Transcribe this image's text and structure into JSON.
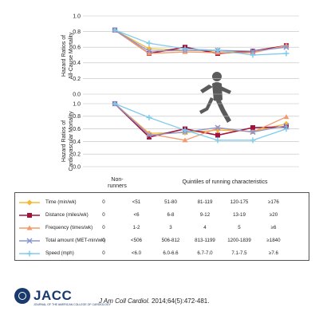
{
  "chart_data": [
    {
      "type": "line",
      "ylabel": "Hazard Ratios of All-Cause Mortality",
      "yticks": [
        "1.0",
        "0.8",
        "0.6",
        "0.4",
        "0.2",
        "0.0"
      ],
      "ylim": [
        0,
        1.0
      ],
      "x": [
        "Non-runners",
        "Q1",
        "Q2",
        "Q3",
        "Q4",
        "Q5"
      ],
      "series": [
        {
          "name": "Time (min/wk)",
          "values": [
            0.82,
            0.58,
            0.56,
            0.55,
            0.54,
            0.62
          ]
        },
        {
          "name": "Distance (miles/wk)",
          "values": [
            0.82,
            0.52,
            0.6,
            0.52,
            0.55,
            0.62
          ]
        },
        {
          "name": "Frequency (times/wk)",
          "values": [
            0.82,
            0.52,
            0.54,
            0.53,
            0.53,
            0.62
          ]
        },
        {
          "name": "Total amount (MET-min/wk)",
          "values": [
            0.82,
            0.55,
            0.56,
            0.56,
            0.55,
            0.6
          ]
        },
        {
          "name": "Speed (mph)",
          "values": [
            0.82,
            0.65,
            0.58,
            0.56,
            0.5,
            0.52
          ]
        }
      ]
    },
    {
      "type": "line",
      "ylabel": "Hazard Ratios of Cardiovascular Mortality",
      "yticks": [
        "1.0",
        "0.8",
        "0.6",
        "0.4",
        "0.2",
        "0.0"
      ],
      "ylim": [
        0,
        1.0
      ],
      "x": [
        "Non-runners",
        "Q1",
        "Q2",
        "Q3",
        "Q4",
        "Q5"
      ],
      "series": [
        {
          "name": "Time (min/wk)",
          "values": [
            1.0,
            0.53,
            0.54,
            0.58,
            0.56,
            0.68
          ]
        },
        {
          "name": "Distance (miles/wk)",
          "values": [
            1.0,
            0.47,
            0.6,
            0.5,
            0.62,
            0.63
          ]
        },
        {
          "name": "Frequency (times/wk)",
          "values": [
            1.0,
            0.52,
            0.42,
            0.61,
            0.55,
            0.79
          ]
        },
        {
          "name": "Total amount (MET-min/wk)",
          "values": [
            1.0,
            0.5,
            0.55,
            0.62,
            0.55,
            0.65
          ]
        },
        {
          "name": "Speed (mph)",
          "values": [
            1.0,
            0.78,
            0.58,
            0.42,
            0.42,
            0.6
          ]
        }
      ]
    }
  ],
  "axis": {
    "nonrunners_line1": "Non-",
    "nonrunners_line2": "runners",
    "xlabel": "Quintiles of running characteristics"
  },
  "ylabels": {
    "top_line1": "Hazard Ratios of",
    "top_line2": "All-Cause Mortality",
    "bottom_line1": "Hazard Ratios of",
    "bottom_line2": "Cardiovascular Mortality"
  },
  "legend": [
    {
      "label": "Time (min/wk)",
      "values": [
        "0",
        "<51",
        "51-80",
        "81-119",
        "120-175",
        "≥176"
      ],
      "color": "#f5b82e",
      "marker": "diamond"
    },
    {
      "label": "Distance (miles/wk)",
      "values": [
        "0",
        "<6",
        "6-8",
        "9-12",
        "13-19",
        "≥20"
      ],
      "color": "#a3123a",
      "marker": "square"
    },
    {
      "label": "Frequency (times/wk)",
      "values": [
        "0",
        "1-2",
        "3",
        "4",
        "5",
        "≥6"
      ],
      "color": "#f49a6c",
      "marker": "triangle"
    },
    {
      "label": "Total amount (MET-min/wk)",
      "values": [
        "0",
        "<506",
        "506-812",
        "813-1199",
        "1200-1839",
        "≥1840"
      ],
      "color": "#8b97cf",
      "marker": "x"
    },
    {
      "label": "Speed (mph)",
      "values": [
        "0",
        "<6.0",
        "6.0-6.6",
        "6.7-7.0",
        "7.1-7.5",
        "≥7.6"
      ],
      "color": "#7ecbee",
      "marker": "plus"
    }
  ],
  "footer": {
    "brand": "JACC",
    "brand_sub": "JOURNAL OF THE AMERICAN COLLEGE OF CARDIOLOGY",
    "cite_journal": "J Am Coll Cardiol.",
    "cite_rest": " 2014;64(5):472-481."
  },
  "icons": {
    "runner": "runner-silhouette-icon",
    "logo": "jacc-logo-icon"
  }
}
